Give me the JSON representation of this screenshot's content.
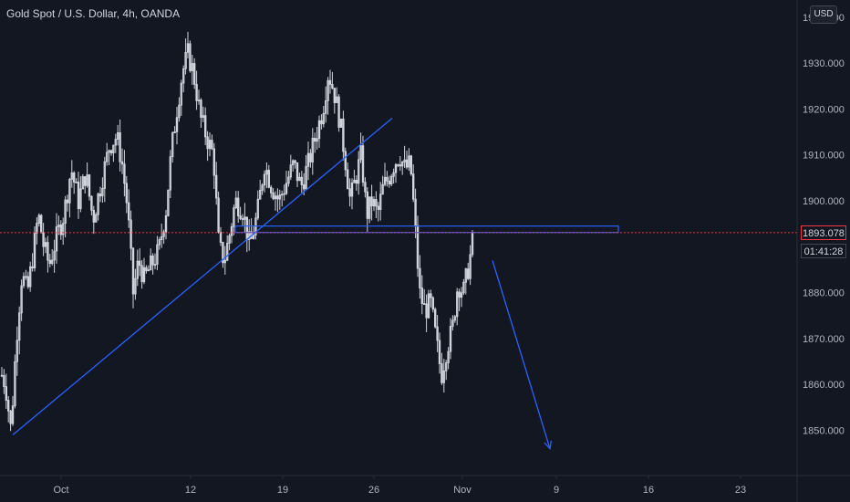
{
  "header": {
    "title": "Gold Spot / U.S. Dollar, 4h, OANDA",
    "currency_button": "USD"
  },
  "price_axis": {
    "current_price": "1893.078",
    "countdown": "01:41:28"
  },
  "colors": {
    "background": "#131722",
    "candle": "#d1d4dc",
    "drawing": "#2962ff",
    "price_line": "#f23645"
  },
  "chart_data": {
    "type": "candlestick",
    "title": "Gold Spot / U.S. Dollar, 4h, OANDA",
    "ylim": [
      1840,
      1945
    ],
    "y_ticks": [
      "1850.000",
      "1860.000",
      "1870.000",
      "1880.000",
      "1890.000",
      "1900.000",
      "1910.000",
      "1920.000",
      "1930.000",
      "1940.000"
    ],
    "x_ticks": [
      "Oct",
      "12",
      "19",
      "26",
      "Nov",
      "9",
      "16",
      "23"
    ],
    "current_price": 1893.078,
    "key_points": [
      {
        "label": "start-low",
        "value": 1849
      },
      {
        "label": "mid-oct-high",
        "value": 1933
      },
      {
        "label": "oct-14-low",
        "value": 1882
      },
      {
        "label": "oct-22-high",
        "value": 1931
      },
      {
        "label": "oct-29-drop",
        "value": 1880
      },
      {
        "label": "nov-1-low",
        "value": 1860
      },
      {
        "label": "last-close",
        "value": 1893.078
      }
    ],
    "drawings": [
      {
        "type": "trendline",
        "from_value": 1849,
        "to_value": 1918
      },
      {
        "type": "resistance-box",
        "value_low": 1893.1,
        "value_high": 1894.5
      },
      {
        "type": "arrow",
        "from_value": 1887,
        "to_value": 1846
      }
    ]
  }
}
